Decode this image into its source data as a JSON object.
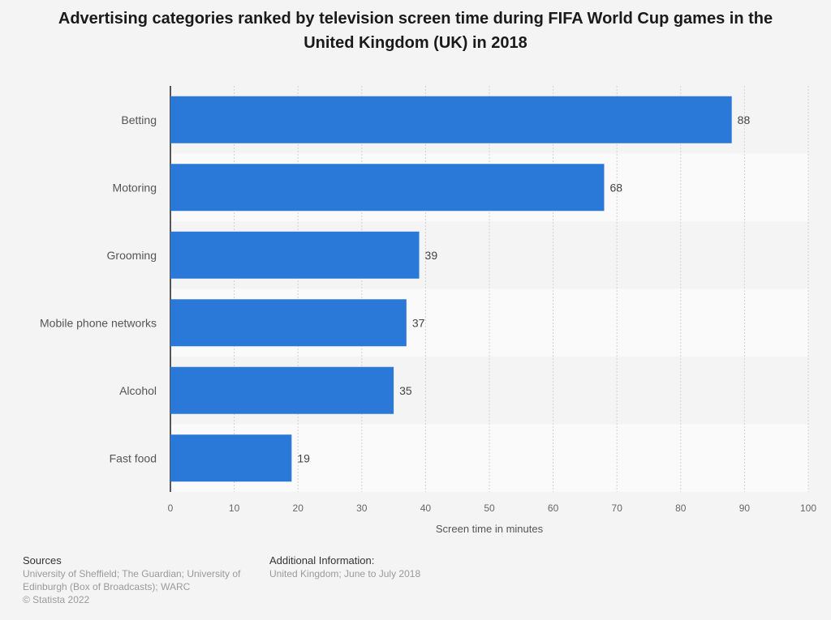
{
  "chart_data": {
    "type": "bar",
    "orientation": "horizontal",
    "title": "Advertising categories ranked by television screen time during FIFA World Cup games in the United Kingdom (UK) in 2018",
    "categories": [
      "Betting",
      "Motoring",
      "Grooming",
      "Mobile phone networks",
      "Alcohol",
      "Fast food"
    ],
    "values": [
      88,
      68,
      39,
      37,
      35,
      19
    ],
    "xlabel": "Screen time in minutes",
    "ylabel": "",
    "xlim": [
      0,
      100
    ],
    "xticks": [
      0,
      10,
      20,
      30,
      40,
      50,
      60,
      70,
      80,
      90,
      100
    ],
    "grid": true,
    "bar_color": "#2a79d8"
  },
  "footer": {
    "sources_heading": "Sources",
    "sources_text": "University of Sheffield; The Guardian; University of Edinburgh (Box of Broadcasts); WARC",
    "copyright": "© Statista 2022",
    "additional_heading": "Additional Information:",
    "additional_text": "United Kingdom; June to July 2018"
  }
}
